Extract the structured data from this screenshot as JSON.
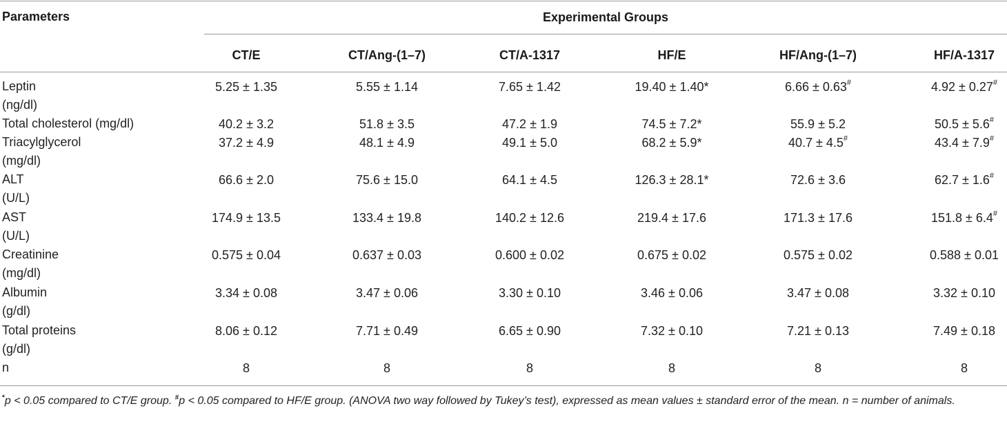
{
  "header": {
    "parameters_label": "Parameters",
    "group_header": "Experimental Groups",
    "columns": [
      "CT/E",
      "CT/Ang-(1–7)",
      "CT/A-1317",
      "HF/E",
      "HF/Ang-(1–7)",
      "HF/A-1317"
    ]
  },
  "rows": [
    {
      "name": "leptin",
      "param": [
        "Leptin",
        "(ng/dl)"
      ],
      "cells": [
        {
          "v": "5.25 ± 1.35",
          "s": ""
        },
        {
          "v": "5.55 ± 1.14",
          "s": ""
        },
        {
          "v": "7.65 ± 1.42",
          "s": ""
        },
        {
          "v": "19.40 ± 1.40*",
          "s": ""
        },
        {
          "v": "6.66 ± 0.63",
          "s": "#"
        },
        {
          "v": "4.92 ± 0.27",
          "s": "#"
        }
      ]
    },
    {
      "name": "total-cholesterol",
      "param": [
        "Total cholesterol (mg/dl)"
      ],
      "cells": [
        {
          "v": "40.2 ± 3.2",
          "s": ""
        },
        {
          "v": "51.8 ± 3.5",
          "s": ""
        },
        {
          "v": "47.2 ± 1.9",
          "s": ""
        },
        {
          "v": "74.5 ± 7.2*",
          "s": ""
        },
        {
          "v": "55.9 ± 5.2",
          "s": ""
        },
        {
          "v": "50.5 ± 5.6",
          "s": "#"
        }
      ]
    },
    {
      "name": "triacylglycerol",
      "param": [
        "Triacylglycerol",
        "(mg/dl)"
      ],
      "cells": [
        {
          "v": "37.2 ± 4.9",
          "s": ""
        },
        {
          "v": "48.1 ± 4.9",
          "s": ""
        },
        {
          "v": "49.1 ± 5.0",
          "s": ""
        },
        {
          "v": "68.2 ± 5.9*",
          "s": ""
        },
        {
          "v": "40.7 ± 4.5",
          "s": "#"
        },
        {
          "v": "43.4 ± 7.9",
          "s": "#"
        }
      ]
    },
    {
      "name": "alt",
      "param": [
        "ALT",
        "(U/L)"
      ],
      "cells": [
        {
          "v": "66.6 ± 2.0",
          "s": ""
        },
        {
          "v": "75.6 ± 15.0",
          "s": ""
        },
        {
          "v": "64.1 ± 4.5",
          "s": ""
        },
        {
          "v": "126.3 ± 28.1*",
          "s": ""
        },
        {
          "v": "72.6 ± 3.6",
          "s": ""
        },
        {
          "v": "62.7 ± 1.6",
          "s": "#"
        }
      ]
    },
    {
      "name": "ast",
      "param": [
        "AST",
        "(U/L)"
      ],
      "cells": [
        {
          "v": "174.9 ± 13.5",
          "s": ""
        },
        {
          "v": "133.4 ± 19.8",
          "s": ""
        },
        {
          "v": "140.2 ± 12.6",
          "s": ""
        },
        {
          "v": "219.4 ± 17.6",
          "s": ""
        },
        {
          "v": "171.3 ± 17.6",
          "s": ""
        },
        {
          "v": "151.8 ± 6.4",
          "s": "#"
        }
      ]
    },
    {
      "name": "creatinine",
      "param": [
        "Creatinine",
        "(mg/dl)"
      ],
      "cells": [
        {
          "v": "0.575 ± 0.04",
          "s": ""
        },
        {
          "v": "0.637 ± 0.03",
          "s": ""
        },
        {
          "v": "0.600 ± 0.02",
          "s": ""
        },
        {
          "v": "0.675 ± 0.02",
          "s": ""
        },
        {
          "v": "0.575 ± 0.02",
          "s": ""
        },
        {
          "v": "0.588 ± 0.01",
          "s": ""
        }
      ]
    },
    {
      "name": "albumin",
      "param": [
        "Albumin",
        "(g/dl)"
      ],
      "cells": [
        {
          "v": "3.34 ± 0.08",
          "s": ""
        },
        {
          "v": "3.47 ± 0.06",
          "s": ""
        },
        {
          "v": "3.30 ± 0.10",
          "s": ""
        },
        {
          "v": "3.46 ± 0.06",
          "s": ""
        },
        {
          "v": "3.47 ± 0.08",
          "s": ""
        },
        {
          "v": "3.32 ± 0.10",
          "s": ""
        }
      ]
    },
    {
      "name": "total-proteins",
      "param": [
        "Total proteins",
        "(g/dl)"
      ],
      "cells": [
        {
          "v": "8.06 ± 0.12",
          "s": ""
        },
        {
          "v": "7.71 ± 0.49",
          "s": ""
        },
        {
          "v": "6.65 ± 0.90",
          "s": ""
        },
        {
          "v": "7.32 ± 0.10",
          "s": ""
        },
        {
          "v": "7.21 ± 0.13",
          "s": ""
        },
        {
          "v": "7.49 ± 0.18",
          "s": ""
        }
      ]
    },
    {
      "name": "n",
      "param": [
        "n"
      ],
      "cells": [
        {
          "v": "8",
          "s": ""
        },
        {
          "v": "8",
          "s": ""
        },
        {
          "v": "8",
          "s": ""
        },
        {
          "v": "8",
          "s": ""
        },
        {
          "v": "8",
          "s": ""
        },
        {
          "v": "8",
          "s": ""
        }
      ]
    }
  ],
  "footnote": {
    "mark1": "*",
    "text1": "p < 0.05 compared to CT/E group. ",
    "mark2": "#",
    "text2": "p < 0.05 compared to HF/E group. (ANOVA two way followed by Tukey’s test), expressed as mean values ± standard error of the mean. n = number of animals."
  }
}
